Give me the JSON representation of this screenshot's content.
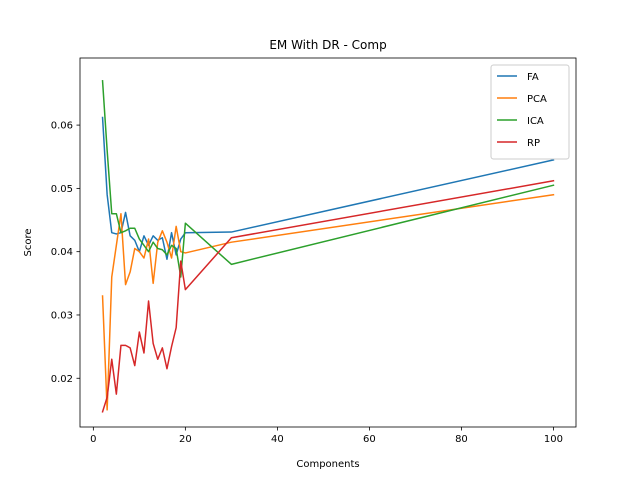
{
  "chart_data": {
    "type": "line",
    "title": "EM With DR - Comp",
    "xlabel": "Components",
    "ylabel": "Score",
    "xlim": [
      -2.9,
      104.9
    ],
    "ylim": [
      0.0123,
      0.0706
    ],
    "xticks": [
      0,
      20,
      40,
      60,
      80,
      100
    ],
    "yticks": [
      0.02,
      0.03,
      0.04,
      0.05,
      0.06
    ],
    "ytick_labels": [
      "0.02",
      "0.03",
      "0.04",
      "0.05",
      "0.06"
    ],
    "legend_position": "upper right",
    "grid": false,
    "series": [
      {
        "name": "FA",
        "color": "#1f77b4",
        "x": [
          2,
          3,
          4,
          5,
          6,
          7,
          8,
          9,
          10,
          11,
          12,
          13,
          14,
          15,
          16,
          17,
          18,
          19,
          20,
          30,
          100
        ],
        "y": [
          0.0612,
          0.049,
          0.043,
          0.0428,
          0.043,
          0.0462,
          0.0425,
          0.0418,
          0.04,
          0.0425,
          0.041,
          0.0425,
          0.0418,
          0.0422,
          0.0388,
          0.043,
          0.0395,
          0.042,
          0.043,
          0.0431,
          0.0545
        ]
      },
      {
        "name": "PCA",
        "color": "#ff7f0e",
        "x": [
          2,
          3,
          4,
          5,
          6,
          7,
          8,
          9,
          10,
          11,
          12,
          13,
          14,
          15,
          16,
          17,
          18,
          19,
          20,
          30,
          100
        ],
        "y": [
          0.033,
          0.015,
          0.036,
          0.041,
          0.046,
          0.0348,
          0.0368,
          0.0405,
          0.04,
          0.039,
          0.042,
          0.035,
          0.0415,
          0.0433,
          0.0415,
          0.039,
          0.044,
          0.04,
          0.0398,
          0.0415,
          0.049
        ]
      },
      {
        "name": "ICA",
        "color": "#2ca02c",
        "x": [
          2,
          3,
          4,
          5,
          6,
          7,
          8,
          9,
          10,
          11,
          12,
          13,
          14,
          15,
          16,
          17,
          18,
          19,
          20,
          30,
          100
        ],
        "y": [
          0.067,
          0.056,
          0.046,
          0.046,
          0.043,
          0.0433,
          0.0437,
          0.0437,
          0.042,
          0.041,
          0.04,
          0.0415,
          0.0405,
          0.0403,
          0.0395,
          0.041,
          0.0405,
          0.036,
          0.0445,
          0.038,
          0.0505
        ]
      },
      {
        "name": "RP",
        "color": "#d62728",
        "x": [
          2,
          3,
          4,
          5,
          6,
          7,
          8,
          9,
          10,
          11,
          12,
          13,
          14,
          15,
          16,
          17,
          18,
          19,
          20,
          30,
          100
        ],
        "y": [
          0.0147,
          0.017,
          0.023,
          0.0175,
          0.0252,
          0.0252,
          0.0248,
          0.022,
          0.0273,
          0.024,
          0.0322,
          0.0255,
          0.023,
          0.0248,
          0.0215,
          0.025,
          0.028,
          0.0385,
          0.034,
          0.0422,
          0.0512
        ]
      }
    ]
  }
}
